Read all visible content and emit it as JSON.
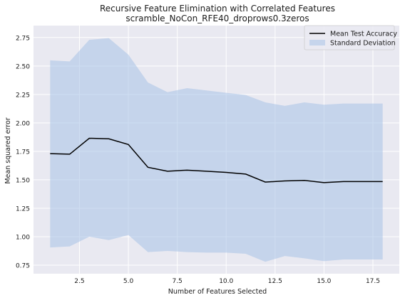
{
  "chart_data": {
    "type": "line",
    "title": "Recursive Feature Elimination with Correlated Features",
    "subtitle": "scramble_NoCon_RFE40_droprows0.3zeros",
    "xlabel": "Number of Features Selected",
    "ylabel": "Mean squared error",
    "xlim": [
      0.15,
      18.85
    ],
    "ylim": [
      0.675,
      2.855
    ],
    "xticks": [
      2.5,
      5.0,
      7.5,
      10.0,
      12.5,
      15.0,
      17.5
    ],
    "xtick_labels": [
      "2.5",
      "5.0",
      "7.5",
      "10.0",
      "12.5",
      "15.0",
      "17.5"
    ],
    "yticks": [
      0.75,
      1.0,
      1.25,
      1.5,
      1.75,
      2.0,
      2.25,
      2.5,
      2.75
    ],
    "ytick_labels": [
      "0.75",
      "1.00",
      "1.25",
      "1.50",
      "1.75",
      "2.00",
      "2.25",
      "2.50",
      "2.75"
    ],
    "grid": true,
    "legend_position": "top-right",
    "x": [
      1,
      2,
      3,
      4,
      5,
      6,
      7,
      8,
      9,
      10,
      11,
      12,
      13,
      14,
      15,
      16,
      17,
      18
    ],
    "series": [
      {
        "name": "Mean Test Accuracy",
        "kind": "line",
        "color": "#000000",
        "values": [
          1.73,
          1.725,
          1.865,
          1.86,
          1.81,
          1.61,
          1.575,
          1.585,
          1.575,
          1.565,
          1.55,
          1.48,
          1.49,
          1.495,
          1.475,
          1.485,
          1.485,
          1.485
        ]
      },
      {
        "name": "Standard Deviation",
        "kind": "band",
        "color": "#aec7e8",
        "upper": [
          2.55,
          2.54,
          2.73,
          2.745,
          2.6,
          2.355,
          2.27,
          2.305,
          2.285,
          2.265,
          2.245,
          2.18,
          2.15,
          2.18,
          2.16,
          2.17,
          2.17,
          2.17
        ],
        "lower": [
          0.905,
          0.915,
          1.0,
          0.97,
          1.015,
          0.865,
          0.875,
          0.865,
          0.86,
          0.86,
          0.85,
          0.78,
          0.83,
          0.81,
          0.785,
          0.8,
          0.8,
          0.8
        ]
      }
    ]
  }
}
